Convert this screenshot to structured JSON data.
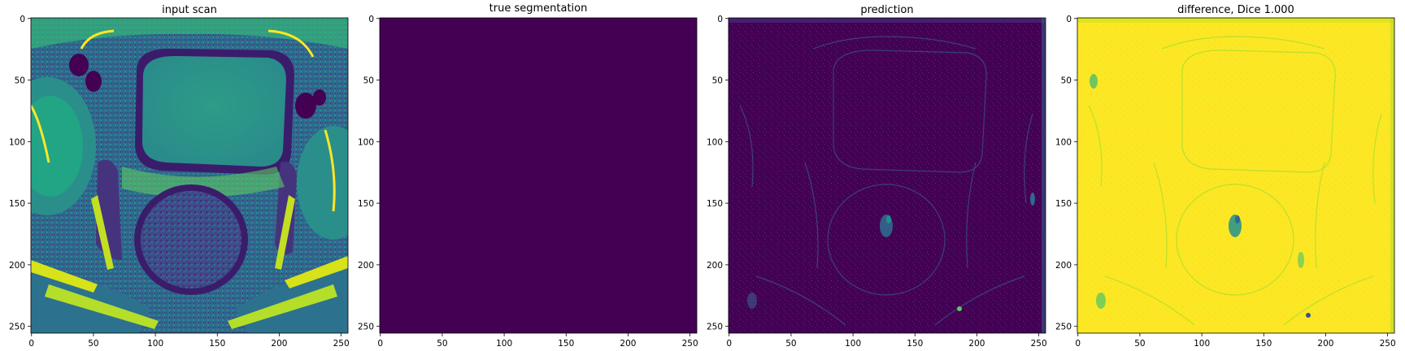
{
  "colors": {
    "viridis_dark": "#440154",
    "viridis_blue": "#31688e",
    "viridis_teal": "#21918c",
    "viridis_green": "#35b779",
    "viridis_yellow": "#fde725",
    "axis": "#000000"
  },
  "panels": [
    {
      "title": "input scan",
      "xticks": [
        "0",
        "50",
        "100",
        "150",
        "200",
        "250"
      ],
      "yticks": [
        "0",
        "50",
        "100",
        "150",
        "200",
        "250"
      ],
      "kind": "mri"
    },
    {
      "title": "true segmentation",
      "xticks": [
        "0",
        "50",
        "100",
        "150",
        "200",
        "250"
      ],
      "yticks": [
        "0",
        "50",
        "100",
        "150",
        "200",
        "250"
      ],
      "kind": "flat-dark"
    },
    {
      "title": "prediction",
      "xticks": [
        "0",
        "50",
        "100",
        "150",
        "200",
        "250"
      ],
      "yticks": [
        "0",
        "50",
        "100",
        "150",
        "200",
        "250"
      ],
      "kind": "prediction"
    },
    {
      "title": "difference, Dice 1.000",
      "xticks": [
        "0",
        "50",
        "100",
        "150",
        "200",
        "250"
      ],
      "yticks": [
        "0",
        "50",
        "100",
        "150",
        "200",
        "250"
      ],
      "kind": "difference"
    }
  ]
}
